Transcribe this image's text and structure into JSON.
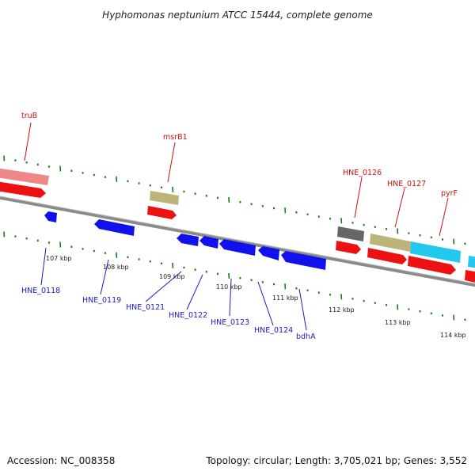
{
  "title": "Hyphomonas neptunium ATCC 15444, complete genome",
  "footer": {
    "accession": "Accession: NC_008358",
    "summary": "Topology: circular; Length: 3,705,021 bp; Genes: 3,552"
  },
  "colors": {
    "red_label": "#cc1111",
    "blue_label": "#1a1acc",
    "tick": "#1f7a1f",
    "backbone": "#8a8a8a",
    "feature_red": "#ee1111",
    "feature_blue": "#1111ee",
    "feature_pink": "#ee8888",
    "feature_khaki": "#bdb47a",
    "feature_cyan": "#22c8ee",
    "feature_gray": "#666666"
  },
  "kbp_labels": [
    "107 kbp",
    "108 kbp",
    "109 kbp",
    "110 kbp",
    "111 kbp",
    "112 kbp",
    "113 kbp",
    "114 kbp"
  ],
  "gene_labels_top": [
    "truB",
    "msrB1",
    "HNE_0126",
    "HNE_0127",
    "pyrF"
  ],
  "gene_labels_bottom": [
    "HNE_0118",
    "HNE_0119",
    "HNE_0121",
    "HNE_0122",
    "HNE_0123",
    "HNE_0124",
    "bdhA"
  ]
}
